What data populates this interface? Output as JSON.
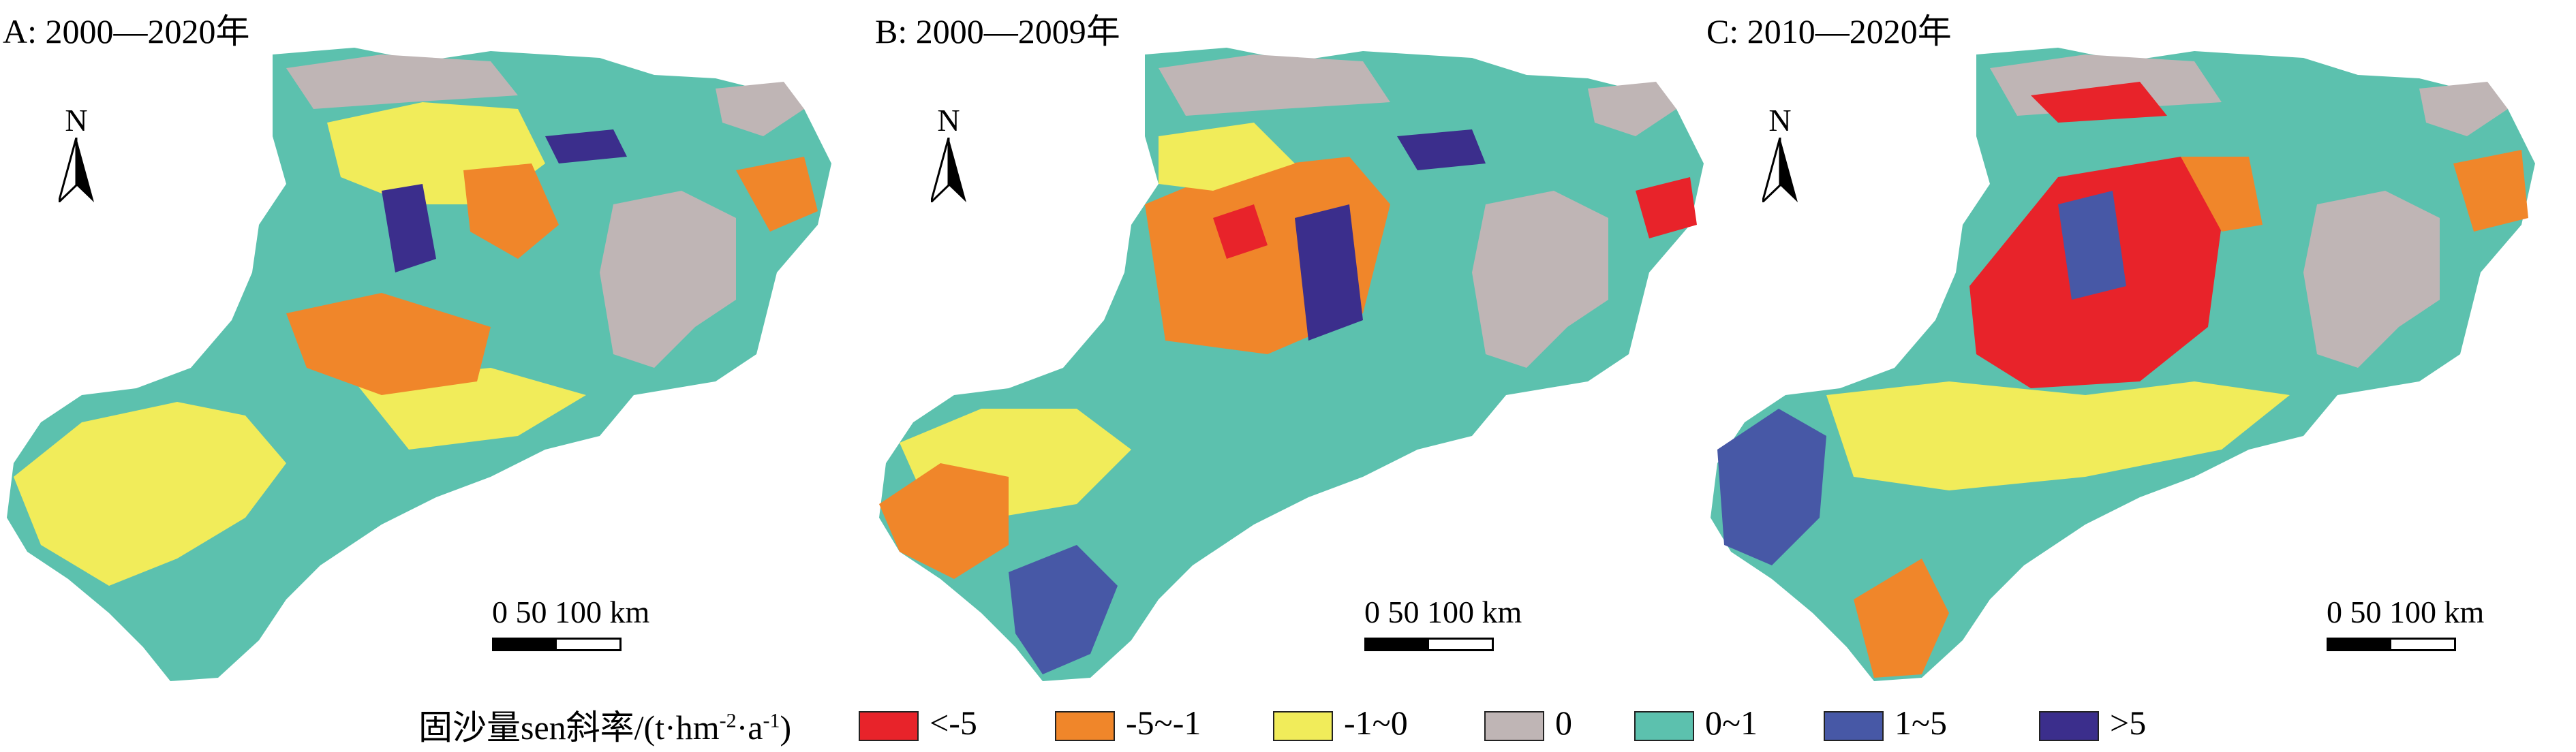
{
  "panels": [
    {
      "id": "A",
      "title": "A: 2000—2020年"
    },
    {
      "id": "B",
      "title": "B: 2000—2009年"
    },
    {
      "id": "C",
      "title": "C: 2010—2020年"
    }
  ],
  "north_arrow": {
    "label": "N"
  },
  "scale_bar": {
    "labels": "0  50 100 km"
  },
  "legend": {
    "title_prefix": "固沙量sen斜率/(t·hm",
    "title_sup1": "-2",
    "title_mid": "·a",
    "title_sup2": "-1",
    "title_suffix": ")",
    "items": [
      {
        "label": "<-5",
        "color": "#e8232a"
      },
      {
        "label": "-5~-1",
        "color": "#f0862a"
      },
      {
        "label": "-1~0",
        "color": "#f1ec5a"
      },
      {
        "label": "0",
        "color": "#bfb5b5"
      },
      {
        "label": "0~1",
        "color": "#5cc1ae"
      },
      {
        "label": "1~5",
        "color": "#4758a6"
      },
      {
        "label": ">5",
        "color": "#3b2e8c"
      }
    ]
  }
}
